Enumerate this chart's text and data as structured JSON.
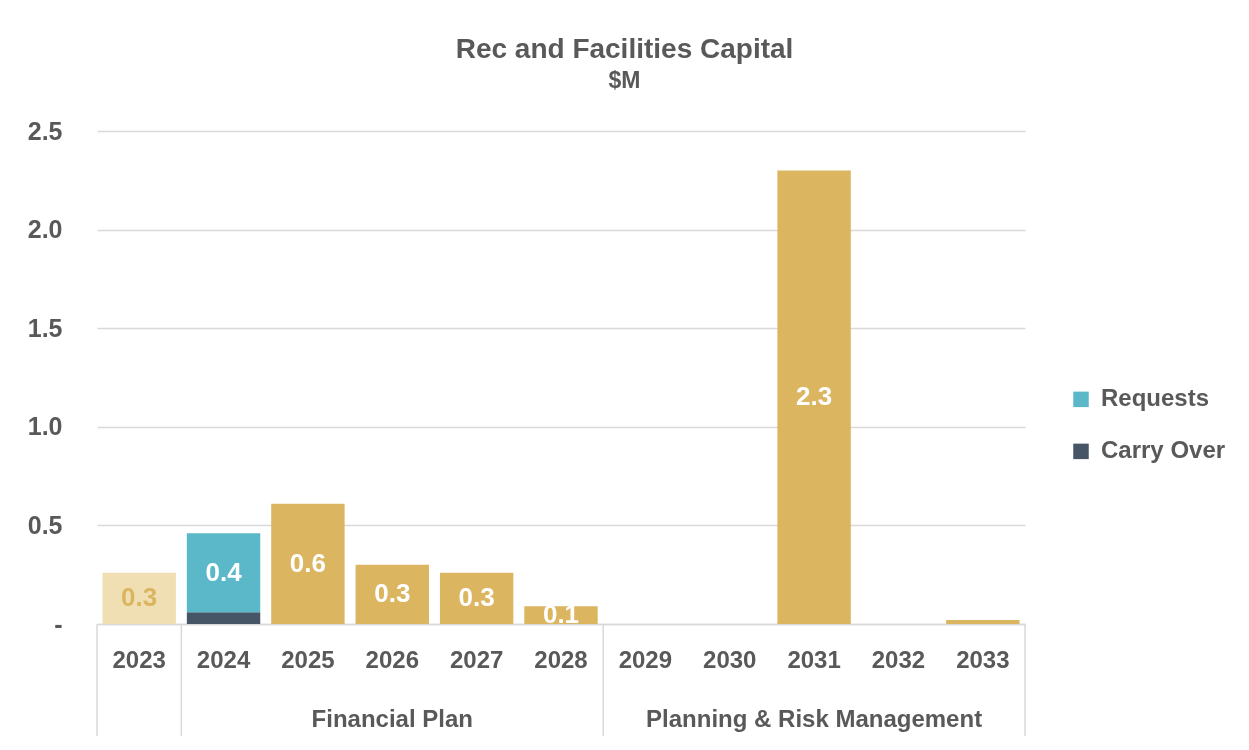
{
  "chart_data": {
    "type": "bar",
    "title": "Rec and Facilities Capital",
    "subtitle": "$M",
    "stacked": true,
    "categories": [
      "2023",
      "2024",
      "2025",
      "2026",
      "2027",
      "2028",
      "2029",
      "2030",
      "2031",
      "2032",
      "2033"
    ],
    "series": [
      {
        "name": "Carry Over",
        "color": "#465667",
        "values": [
          null,
          0.06,
          null,
          null,
          null,
          null,
          null,
          null,
          null,
          null,
          null
        ]
      },
      {
        "name": "Requests",
        "color": "#5ab8c8",
        "values": [
          null,
          0.4,
          null,
          null,
          null,
          null,
          null,
          null,
          null,
          null,
          null
        ],
        "value_labels": [
          null,
          "0.4",
          null,
          null,
          null,
          null,
          null,
          null,
          null,
          null,
          null
        ]
      },
      {
        "color": "#dbb560",
        "colors": [
          "#efdfb3",
          null,
          "#dbb560",
          "#dbb560",
          "#dbb560",
          "#dbb560",
          null,
          null,
          "#dbb560",
          null,
          "#dbb560"
        ],
        "values": [
          0.26,
          null,
          0.61,
          0.3,
          0.26,
          0.09,
          null,
          null,
          2.3,
          null,
          0.02
        ],
        "value_labels": [
          "0.3",
          null,
          "0.6",
          "0.3",
          "0.3",
          "0.1",
          null,
          null,
          "2.3",
          null,
          null
        ]
      }
    ],
    "ylim": [
      0,
      2.5
    ],
    "yticks": [
      {
        "value": 0,
        "label": "-"
      },
      0.5,
      {
        "value": 1,
        "label": "1.0"
      },
      1.5,
      {
        "value": 2,
        "label": "2.0"
      },
      2.5
    ],
    "grid": "y",
    "legend": "right",
    "annotations": [
      "Financial Plan",
      "Planning & Risk Management"
    ]
  }
}
